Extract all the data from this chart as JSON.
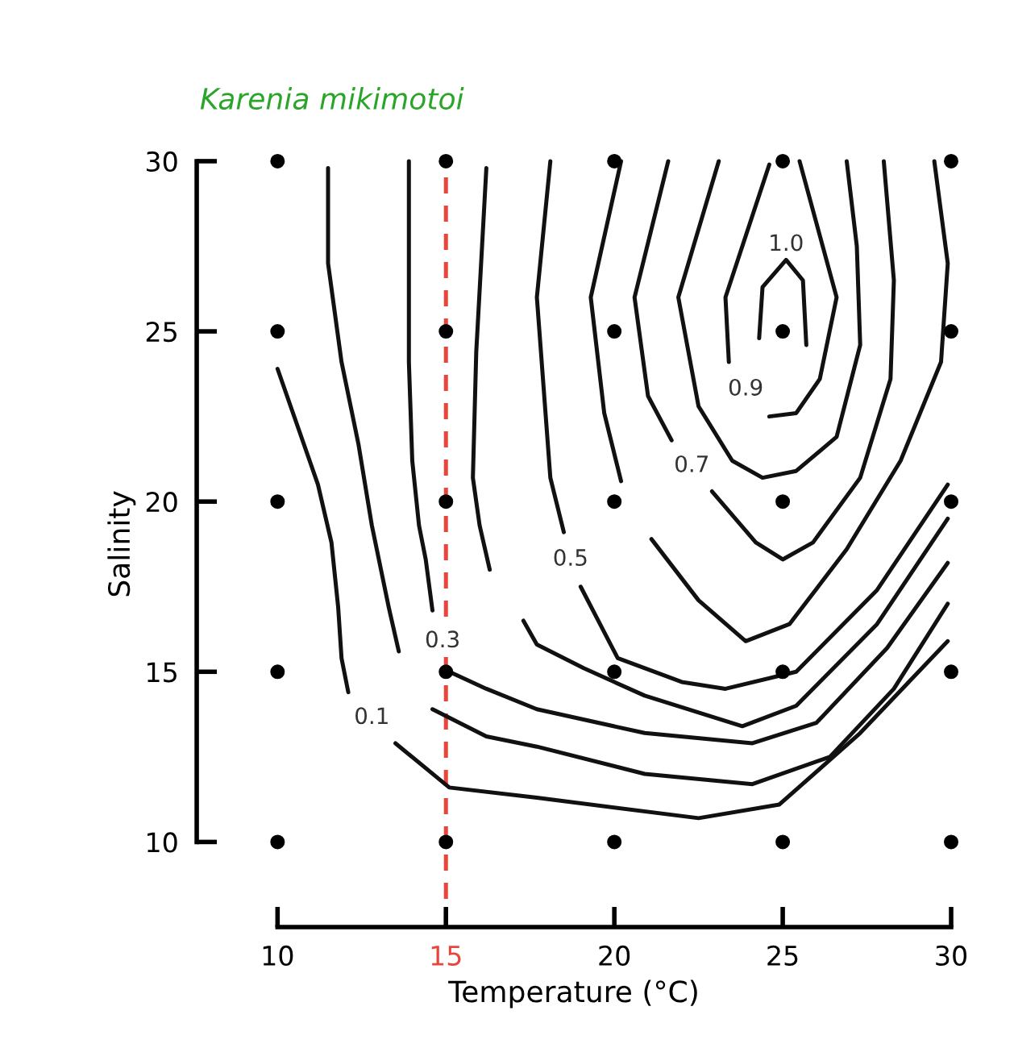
{
  "chart_data": {
    "type": "line",
    "title": "Karenia mikimotoi",
    "xlabel": "Temperature (°C)",
    "ylabel": "Salinity",
    "xlim": [
      7.6,
      30
    ],
    "ylim": [
      7.5,
      30
    ],
    "xticks": [
      10,
      15,
      20,
      25,
      30
    ],
    "yticks": [
      10,
      15,
      20,
      25,
      30
    ],
    "grid": false,
    "marker": "none",
    "line_style": "solid",
    "ref_lines": [
      {
        "axis": "x",
        "value": 15,
        "color": "#e8453c",
        "line_style": "dashed"
      }
    ],
    "series": [
      {
        "name": "0.1",
        "color": "#111111",
        "x": [
          10,
          10.6,
          11.2,
          11.6,
          11.8,
          11.9,
          12.1,
          12.8,
          13.5,
          15.1,
          17.7,
          22.5,
          24.9,
          27.3,
          29.9
        ],
        "values": [
          23.9,
          22.2,
          20.5,
          18.8,
          16.9,
          15.4,
          14.4,
          null,
          12.9,
          11.6,
          11.3,
          10.7,
          11.1,
          13.2,
          15.9
        ]
      },
      {
        "color": "#111111",
        "x": [
          11.5,
          11.5,
          11.9,
          12.4,
          12.8,
          13.3,
          13.6,
          14.1,
          14.6,
          16.2,
          17.7,
          20.9,
          24.1,
          26.4,
          28.3,
          29.9
        ],
        "values": [
          29.8,
          27.0,
          24.1,
          21.7,
          19.3,
          16.9,
          15.6,
          null,
          13.9,
          13.1,
          12.8,
          12.0,
          11.7,
          12.5,
          14.5,
          17.0
        ]
      },
      {
        "name": "0.3",
        "color": "#111111",
        "x": [
          13.9,
          13.9,
          13.9,
          14.0,
          14.2,
          14.4,
          14.6,
          14.9,
          15.1,
          16.2,
          17.7,
          20.9,
          24.1,
          26.0,
          28.1,
          29.9
        ],
        "values": [
          30.0,
          27.0,
          24.1,
          21.2,
          19.3,
          18.3,
          16.8,
          null,
          15.0,
          14.5,
          13.9,
          13.2,
          12.9,
          13.5,
          15.7,
          18.2
        ]
      },
      {
        "color": "#111111",
        "x": [
          16.2,
          15.9,
          15.8,
          16.0,
          16.3,
          16.8,
          17.3,
          17.7,
          19.1,
          20.9,
          23.8,
          25.4,
          27.8,
          29.9
        ],
        "values": [
          29.8,
          24.4,
          20.7,
          19.3,
          18.0,
          null,
          16.5,
          15.8,
          15.1,
          14.3,
          13.4,
          14.0,
          16.4,
          19.5
        ]
      },
      {
        "name": "0.5",
        "color": "#111111",
        "x": [
          18.1,
          17.7,
          18.1,
          18.5,
          18.7,
          19.0,
          20.1,
          22.0,
          23.3,
          25.4,
          27.8,
          29.9
        ],
        "values": [
          30.0,
          26.0,
          20.7,
          19.1,
          null,
          17.5,
          15.4,
          14.7,
          14.5,
          15.0,
          17.4,
          20.5
        ]
      },
      {
        "color": "#111111",
        "x": [
          20.2,
          19.3,
          19.7,
          20.2,
          20.6,
          21.1,
          22.5,
          23.9,
          25.2,
          26.9,
          28.5,
          29.7,
          29.9,
          29.5
        ],
        "values": [
          30.0,
          26.0,
          22.6,
          20.6,
          null,
          18.9,
          17.1,
          15.9,
          16.4,
          18.6,
          21.2,
          24.1,
          27.0,
          30.0
        ]
      },
      {
        "name": "0.7",
        "color": "#111111",
        "x": [
          21.6,
          20.6,
          21.0,
          21.7,
          22.3,
          22.9,
          24.2,
          25.0,
          25.9,
          27.3,
          28.2,
          28.3,
          28.0
        ],
        "values": [
          30.0,
          26.0,
          23.1,
          21.8,
          null,
          20.3,
          18.8,
          18.3,
          18.8,
          20.7,
          23.6,
          26.5,
          30.0
        ]
      },
      {
        "color": "#111111",
        "x": [
          23.1,
          21.9,
          22.5,
          23.5,
          24.4,
          25.4,
          26.6,
          27.3,
          27.2,
          26.9
        ],
        "values": [
          30.0,
          26.0,
          22.8,
          21.2,
          20.7,
          20.9,
          21.9,
          24.6,
          27.5,
          30.0
        ]
      },
      {
        "name": "0.9",
        "color": "#111111",
        "x": [
          24.6,
          23.3,
          23.4,
          23.9,
          24.6,
          25.4,
          26.1,
          26.6,
          25.5
        ],
        "values": [
          29.9,
          26.0,
          24.1,
          null,
          22.5,
          22.6,
          23.6,
          26.0,
          30.0
        ]
      },
      {
        "name": "1.0",
        "color": "#111111",
        "x": [
          24.3,
          24.4,
          25.1,
          25.6,
          25.7
        ],
        "values": [
          24.8,
          26.3,
          27.1,
          26.5,
          24.6
        ]
      },
      {
        "type": "scatter",
        "color": "#000000",
        "x": [
          10,
          15,
          20,
          25,
          30,
          10,
          15,
          20,
          25,
          30,
          10,
          15,
          20,
          25,
          30,
          10,
          15,
          20,
          25,
          30,
          10,
          15,
          20,
          25,
          30
        ],
        "values": [
          30,
          30,
          30,
          30,
          30,
          25,
          25,
          25,
          25,
          25,
          20,
          20,
          20,
          20,
          20,
          15,
          15,
          15,
          15,
          15,
          10,
          10,
          10,
          10,
          10
        ],
        "marker": "circle"
      }
    ]
  }
}
